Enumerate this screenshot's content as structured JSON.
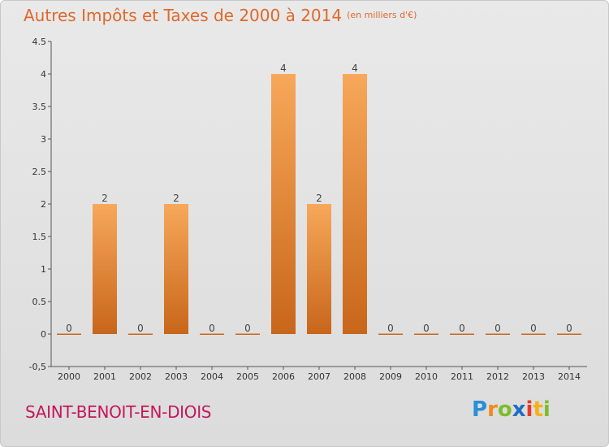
{
  "title": {
    "main": "Autres Impôts et Taxes de 2000 à 2014",
    "unit": "(en milliers d'€)"
  },
  "commune": "SAINT-BENOIT-EN-DIOIS",
  "brand": {
    "text": "Proxiti",
    "letters": [
      "P",
      "r",
      "o",
      "x",
      "i",
      "t",
      "i"
    ]
  },
  "colors": {
    "bar_top": "#f7a85a",
    "bar_bottom": "#c8661a",
    "title": "#e0682a",
    "commune": "#c2185b"
  },
  "chart_data": {
    "type": "bar",
    "title": "Autres Impôts et Taxes de 2000 à 2014",
    "subtitle": "(en milliers d'€)",
    "categories": [
      "2000",
      "2001",
      "2002",
      "2003",
      "2004",
      "2005",
      "2006",
      "2007",
      "2008",
      "2009",
      "2010",
      "2011",
      "2012",
      "2013",
      "2014"
    ],
    "values": [
      0,
      2,
      0,
      2,
      0,
      0,
      4,
      2,
      4,
      0,
      0,
      0,
      0,
      0,
      0
    ],
    "ylim": [
      -0.5,
      4.5
    ],
    "yticks": [
      -0.5,
      0,
      0.5,
      1,
      1.5,
      2,
      2.5,
      3,
      3.5,
      4,
      4.5
    ],
    "ytick_labels": [
      "-0,5",
      "0",
      "0.5",
      "1",
      "1.5",
      "2",
      "2.5",
      "3",
      "3.5",
      "4",
      "4.5"
    ],
    "data_labels": [
      "0",
      "2",
      "0",
      "2",
      "0",
      "0",
      "4",
      "2",
      "4",
      "0",
      "0",
      "0",
      "0",
      "0",
      "0"
    ],
    "grid": false
  }
}
